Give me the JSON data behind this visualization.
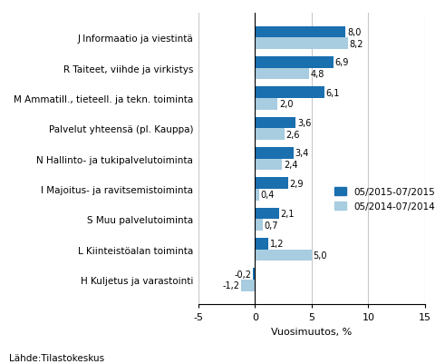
{
  "categories": [
    "J Informaatio ja viestintä",
    "R Taiteet, viihde ja virkistys",
    "M Ammatill., tieteell. ja tekn. toiminta",
    "Palvelut yhteensä (pl. Kauppa)",
    "N Hallinto- ja tukipalvelutoiminta",
    "I Majoitus- ja ravitsemistoiminta",
    "S Muu palvelutoiminta",
    "L Kiinteistöalan toiminta",
    "H Kuljetus ja varastointi"
  ],
  "series1_label": "05/2015-07/2015",
  "series2_label": "05/2014-07/2014",
  "series1_values": [
    8.0,
    6.9,
    6.1,
    3.6,
    3.4,
    2.9,
    2.1,
    1.2,
    -0.2
  ],
  "series2_values": [
    8.2,
    4.8,
    2.0,
    2.6,
    2.4,
    0.4,
    0.7,
    5.0,
    -1.2
  ],
  "color1": "#1a6faf",
  "color2": "#a8cce0",
  "xlim": [
    -5,
    15
  ],
  "xticks": [
    -5,
    0,
    5,
    10,
    15
  ],
  "xlabel": "Vuosimuutos, %",
  "footnote": "Lähde:Tilastokeskus",
  "bar_height": 0.38,
  "grid_color": "#c8c8c8",
  "bg_color": "#ffffff"
}
